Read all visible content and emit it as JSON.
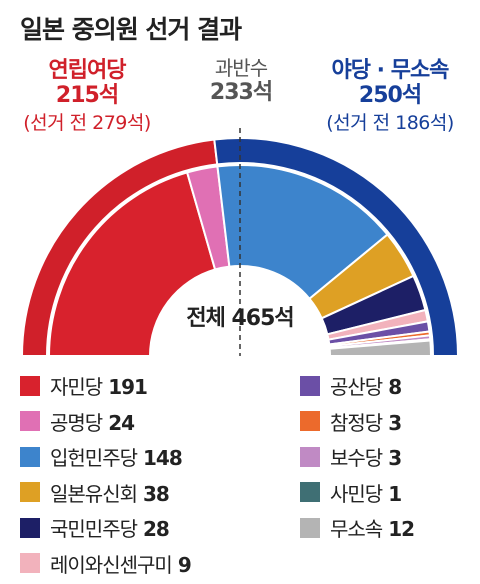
{
  "title": "일본 중의원 선거 결과",
  "ruling_bloc": {
    "name": "연립여당",
    "seats": "215석",
    "previous": "(선거 전 279석)",
    "color": "#d0202a"
  },
  "majority": {
    "label": "과반수",
    "seats": "233석"
  },
  "opposition_bloc": {
    "name": "야당 · 무소속",
    "seats": "250석",
    "previous": "(선거 전 186석)",
    "color": "#163f9a"
  },
  "total": "전체 465석",
  "chart_data": {
    "type": "pie",
    "title": "일본 중의원 선거 결과",
    "total_seats": 465,
    "majority_line": 233,
    "categories": [
      "자민당",
      "공명당",
      "입헌민주당",
      "일본유신회",
      "국민민주당",
      "레이와신센구미",
      "공산당",
      "참정당",
      "보수당",
      "사민당",
      "무소속"
    ],
    "values": [
      191,
      24,
      148,
      38,
      28,
      9,
      8,
      3,
      3,
      1,
      12
    ],
    "colors": [
      "#d8222d",
      "#e070b4",
      "#3d84cc",
      "#dea024",
      "#1d1f66",
      "#f2b2bc",
      "#6b4fa6",
      "#ec6a2c",
      "#c08ac4",
      "#3f6f74",
      "#b4b4b4"
    ],
    "blocs": [
      {
        "name": "연립여당",
        "seats": 215,
        "outer_color": "#d0202a"
      },
      {
        "name": "야당 · 무소속",
        "seats": 250,
        "outer_color": "#163f9a"
      }
    ]
  },
  "legend_left": [
    {
      "label": "자민당",
      "value": "191",
      "color": "#d8222d"
    },
    {
      "label": "공명당",
      "value": "24",
      "color": "#e070b4"
    },
    {
      "label": "입헌민주당",
      "value": "148",
      "color": "#3d84cc"
    },
    {
      "label": "일본유신회",
      "value": "38",
      "color": "#dea024"
    },
    {
      "label": "국민민주당",
      "value": "28",
      "color": "#1d1f66"
    },
    {
      "label": "레이와신센구미",
      "value": "9",
      "color": "#f2b2bc"
    }
  ],
  "legend_right": [
    {
      "label": "공산당",
      "value": "8",
      "color": "#6b4fa6"
    },
    {
      "label": "참정당",
      "value": "3",
      "color": "#ec6a2c"
    },
    {
      "label": "보수당",
      "value": "3",
      "color": "#c08ac4"
    },
    {
      "label": "사민당",
      "value": "1",
      "color": "#3f6f74"
    },
    {
      "label": "무소속",
      "value": "12",
      "color": "#b4b4b4"
    }
  ]
}
